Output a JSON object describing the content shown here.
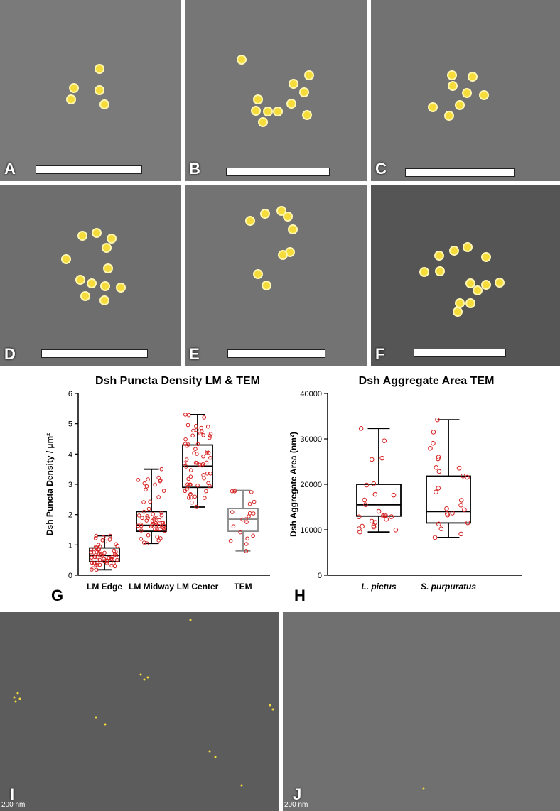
{
  "panels": [
    {
      "label": "A"
    },
    {
      "label": "B"
    },
    {
      "label": "C"
    },
    {
      "label": "D"
    },
    {
      "label": "E"
    },
    {
      "label": "F"
    }
  ],
  "bottom_panels": [
    {
      "label": "I",
      "scale_text": "200 nm"
    },
    {
      "label": "J",
      "scale_text": "200 nm"
    }
  ],
  "chart_labels": {
    "g": "G",
    "h": "H"
  },
  "colors": {
    "dot": "#f5dc3a",
    "red": "#d62020",
    "box_gray": "#888888"
  },
  "chart_data": [
    {
      "type": "box",
      "title": "Dsh Puncta Density LM & TEM",
      "ylabel": "Dsh Puncta Density / µm²",
      "ylim": [
        0,
        6
      ],
      "yticks": [
        0,
        1,
        2,
        3,
        4,
        5,
        6
      ],
      "categories": [
        "LM Edge",
        "LM Midway",
        "LM Center",
        "TEM"
      ],
      "boxes": [
        {
          "min": 0.18,
          "q1": 0.45,
          "median": 0.65,
          "q3": 0.9,
          "max": 1.3
        },
        {
          "min": 1.05,
          "q1": 1.45,
          "median": 1.65,
          "q3": 2.1,
          "max": 3.5
        },
        {
          "min": 2.25,
          "q1": 2.9,
          "median": 3.6,
          "q3": 4.3,
          "max": 5.3
        },
        {
          "min": 0.8,
          "q1": 1.45,
          "median": 1.85,
          "q3": 2.2,
          "max": 2.8
        }
      ]
    },
    {
      "type": "box",
      "title": "Dsh Aggregate Area TEM",
      "ylabel": "Dsh Aggregate Area (nm²)",
      "ylim": [
        0,
        40000
      ],
      "yticks": [
        0,
        10000,
        20000,
        30000,
        40000
      ],
      "categories": [
        "L. pictus",
        "S. purpuratus"
      ],
      "boxes": [
        {
          "min": 9500,
          "q1": 13000,
          "median": 15500,
          "q3": 20000,
          "max": 32300
        },
        {
          "min": 8300,
          "q1": 11500,
          "median": 14000,
          "q3": 21800,
          "max": 34200
        }
      ]
    }
  ]
}
